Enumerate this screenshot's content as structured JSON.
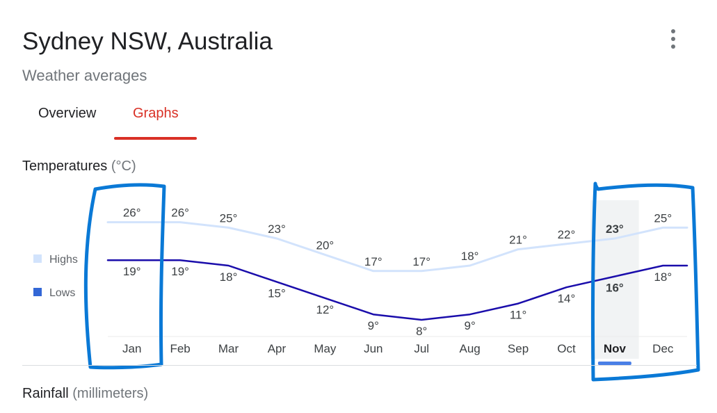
{
  "header": {
    "title": "Sydney NSW, Australia",
    "subtitle": "Weather averages",
    "menu_icon": "more-vert-icon"
  },
  "tabs": [
    {
      "label": "Overview",
      "active": false
    },
    {
      "label": "Graphs",
      "active": true
    }
  ],
  "sections": {
    "temperatures": {
      "label": "Temperatures",
      "unit": "(°C)"
    },
    "rainfall": {
      "label": "Rainfall",
      "unit": "(millimeters)"
    }
  },
  "colors": {
    "highs": "#d2e3fc",
    "lows": "#1a0dab",
    "lows_legend": "#3367d6",
    "accent": "#d93025",
    "selected_bar": "#4a7fe6",
    "annotation": "#0a79d6"
  },
  "chart_data": {
    "type": "line",
    "categories": [
      "Jan",
      "Feb",
      "Mar",
      "Apr",
      "May",
      "Jun",
      "Jul",
      "Aug",
      "Sep",
      "Oct",
      "Nov",
      "Dec"
    ],
    "series": [
      {
        "name": "Highs",
        "values": [
          26,
          26,
          25,
          23,
          20,
          17,
          17,
          18,
          21,
          22,
          23,
          25
        ]
      },
      {
        "name": "Lows",
        "values": [
          19,
          19,
          18,
          15,
          12,
          9,
          8,
          9,
          11,
          14,
          16,
          18
        ]
      }
    ],
    "unit_suffix": "°",
    "selected": "Nov",
    "legend_position": "left",
    "grid": false
  }
}
